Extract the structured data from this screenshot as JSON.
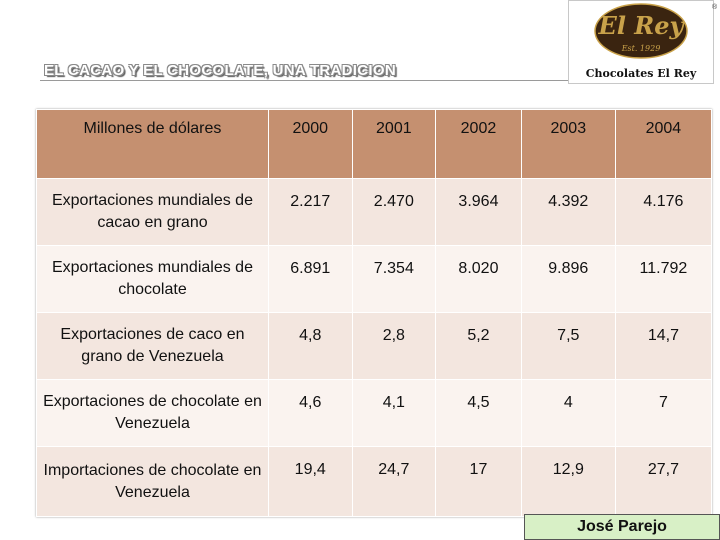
{
  "slide": {
    "title": "EL CACAO Y EL CHOCOLATE, UNA TRADICION",
    "author": "José Parejo"
  },
  "logo": {
    "script": "El Rey",
    "established": "Est. 1929",
    "brand": "Chocolates El Rey",
    "mark": "®",
    "colors": {
      "oval": "#3a2410",
      "lettering": "#c9a24a"
    }
  },
  "table": {
    "headers": [
      "Millones  de dólares",
      "2000",
      "2001",
      "2002",
      "2003",
      "2004"
    ],
    "rows": [
      [
        "Exportaciones mundiales de cacao en grano",
        "2.217",
        "2.470",
        "3.964",
        "4.392",
        "4.176"
      ],
      [
        "Exportaciones mundiales de chocolate",
        "6.891",
        "7.354",
        "8.020",
        "9.896",
        "11.792"
      ],
      [
        "Exportaciones de caco en grano de Venezuela",
        "4,8",
        "2,8",
        "5,2",
        "7,5",
        "14,7"
      ],
      [
        "Exportaciones de chocolate en Venezuela",
        "4,6",
        "4,1",
        "4,5",
        "4",
        "7"
      ],
      [
        "Importaciones de chocolate en Venezuela",
        "19,4",
        "24,7",
        "17",
        "12,9",
        "27,7"
      ]
    ]
  },
  "colors": {
    "header_bg": "#c59070",
    "row_odd": "#f3e6df",
    "row_even": "#faf3ef",
    "author_bg": "#d8f0c6"
  }
}
